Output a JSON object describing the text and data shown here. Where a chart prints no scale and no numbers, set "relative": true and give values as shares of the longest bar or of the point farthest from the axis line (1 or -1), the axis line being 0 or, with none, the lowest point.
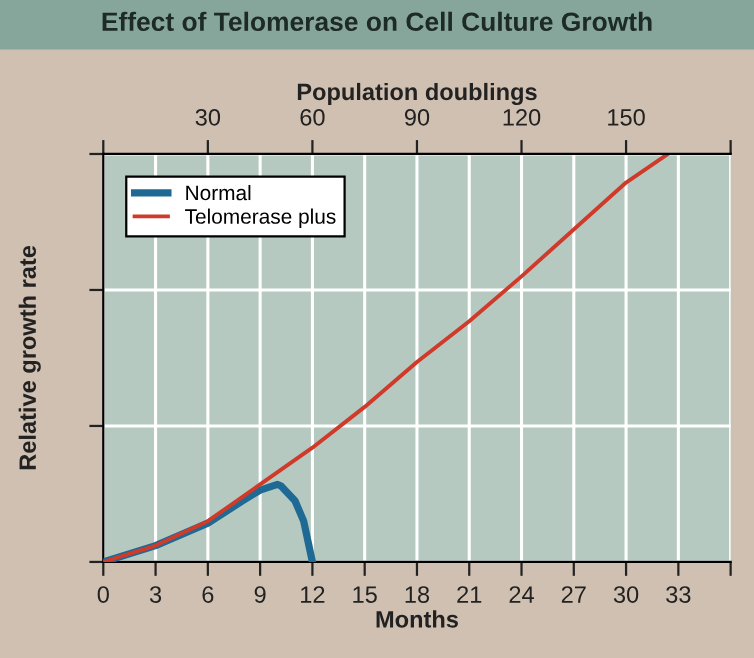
{
  "chart_data": {
    "type": "line",
    "title": "Effect of Telomerase on Cell Culture Growth",
    "xlabel": "Months",
    "ylabel": "Relative growth rate",
    "x2label": "Population doublings",
    "relative": true,
    "xlim": [
      0,
      36
    ],
    "xticks": [
      0,
      3,
      6,
      9,
      12,
      15,
      18,
      21,
      24,
      27,
      30,
      33,
      {
        "value": 36,
        "label": null
      }
    ],
    "x2lim": [
      0,
      180
    ],
    "x2ticks": [
      {
        "value": 0,
        "label": null
      },
      30,
      60,
      90,
      120,
      150,
      {
        "value": 180,
        "label": null
      }
    ],
    "tick_labels": "x",
    "grid": true,
    "legend": "top left",
    "marker": "none",
    "line_style": "solid",
    "series": [
      {
        "name": "Normal",
        "color": "#1f6a94",
        "x": [
          0,
          3,
          6,
          8,
          9,
          10,
          10.2,
          11,
          11.5,
          12
        ],
        "values": [
          0,
          0.04,
          0.095,
          0.15,
          0.176,
          0.19,
          0.186,
          0.15,
          0.1,
          0
        ]
      },
      {
        "name": "Telomerase plus",
        "color": "#d03a2a",
        "x": [
          0,
          3,
          6,
          9,
          12,
          15,
          18,
          21,
          24,
          30,
          32.4
        ],
        "values": [
          0,
          0.04,
          0.1,
          0.19,
          0.28,
          0.38,
          0.49,
          0.59,
          0.7,
          0.93,
          1
        ]
      }
    ]
  }
}
